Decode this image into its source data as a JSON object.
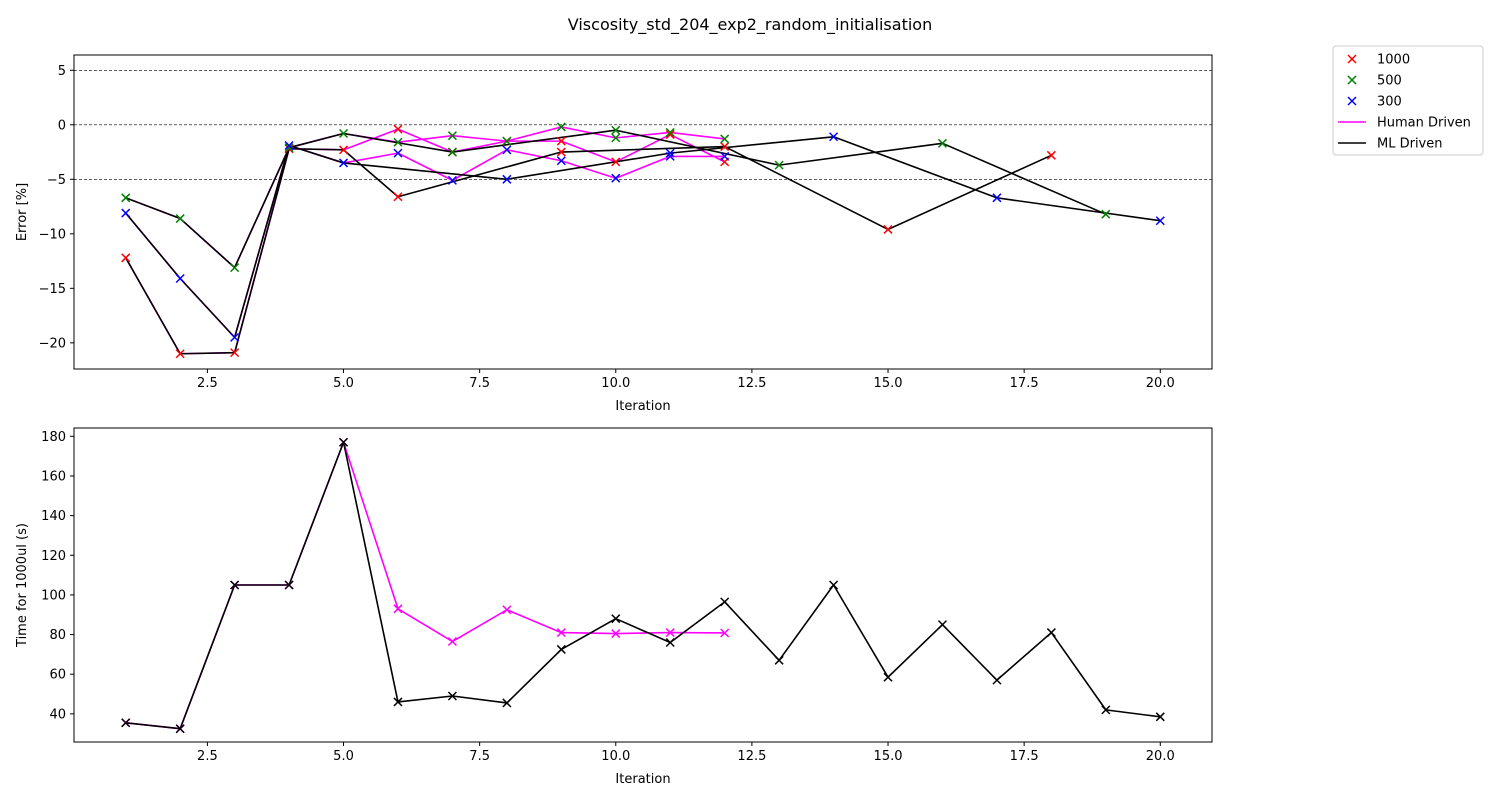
{
  "title": "Viscosity_std_204_exp2_random_initialisation",
  "colors": {
    "v1000": "#ff0000",
    "v500": "#008000",
    "v300": "#0000ff",
    "human": "#ff00ff",
    "ml": "#000000"
  },
  "legend": {
    "placement": "outside-top-right",
    "items": [
      {
        "label": "1000",
        "kind": "marker",
        "color": "#ff0000"
      },
      {
        "label": "500",
        "kind": "marker",
        "color": "#008000"
      },
      {
        "label": "300",
        "kind": "marker",
        "color": "#0000ff"
      },
      {
        "label": "Human Driven",
        "kind": "line",
        "color": "#ff00ff"
      },
      {
        "label": "ML Driven",
        "kind": "line",
        "color": "#000000"
      }
    ]
  },
  "chart_data": [
    {
      "type": "line",
      "xlabel": "Iteration",
      "ylabel": "Error [%]",
      "xlim": [
        0.05,
        20.95
      ],
      "ylim": [
        -22.4,
        6.4
      ],
      "xticks": [
        2.5,
        5.0,
        7.5,
        10.0,
        12.5,
        15.0,
        17.5,
        20.0
      ],
      "xtick_labels": [
        "2.5",
        "5.0",
        "7.5",
        "10.0",
        "12.5",
        "15.0",
        "17.5",
        "20.0"
      ],
      "yticks": [
        5,
        0,
        -5,
        -10,
        -15,
        -20
      ],
      "ytick_labels": [
        "5",
        "0",
        "−5",
        "−10",
        "−15",
        "−20"
      ],
      "hlines": [
        5,
        0,
        -5
      ],
      "series": [
        {
          "name": "Human Driven",
          "group": "1000",
          "color": "#ff00ff",
          "x": [
            1,
            2,
            3,
            4,
            5,
            6,
            7,
            8,
            9,
            10,
            11,
            12
          ],
          "y": [
            -12.2,
            -21.0,
            -20.9,
            -2.2,
            -2.3,
            -0.4,
            -2.5,
            -1.5,
            -1.5,
            -3.4,
            -0.9,
            -3.4
          ]
        },
        {
          "name": "Human Driven",
          "group": "500",
          "color": "#ff00ff",
          "x": [
            1,
            2,
            3,
            4,
            5,
            6,
            7,
            8,
            9,
            10,
            11,
            12
          ],
          "y": [
            -6.7,
            -8.6,
            -13.1,
            -2.1,
            -0.8,
            -1.6,
            -1.0,
            -1.5,
            -0.2,
            -1.2,
            -0.7,
            -1.3
          ]
        },
        {
          "name": "Human Driven",
          "group": "300",
          "color": "#ff00ff",
          "x": [
            1,
            2,
            3,
            4,
            5,
            6,
            7,
            8,
            9,
            10,
            11,
            12
          ],
          "y": [
            -8.1,
            -14.1,
            -19.5,
            -1.9,
            -3.5,
            -2.6,
            -5.1,
            -2.3,
            -3.3,
            -4.9,
            -2.9,
            -2.9
          ]
        },
        {
          "name": "ML Driven",
          "group": "1000",
          "color": "#000000",
          "x": [
            1,
            2,
            3,
            4,
            5,
            6,
            9,
            12,
            15,
            18
          ],
          "y": [
            -12.2,
            -21.0,
            -20.9,
            -2.2,
            -2.3,
            -6.6,
            -2.5,
            -2.0,
            -9.6,
            -2.8
          ]
        },
        {
          "name": "ML Driven",
          "group": "500",
          "color": "#000000",
          "x": [
            1,
            2,
            3,
            4,
            5,
            7,
            10,
            13,
            16,
            19
          ],
          "y": [
            -6.7,
            -8.6,
            -13.1,
            -2.1,
            -0.8,
            -2.5,
            -0.5,
            -3.7,
            -1.7,
            -8.2
          ]
        },
        {
          "name": "ML Driven",
          "group": "300",
          "color": "#000000",
          "x": [
            1,
            2,
            3,
            4,
            5,
            8,
            11,
            14,
            17,
            20
          ],
          "y": [
            -8.1,
            -14.1,
            -19.5,
            -1.9,
            -3.5,
            -5.0,
            -2.6,
            -1.1,
            -6.7,
            -8.8
          ]
        }
      ],
      "markers": [
        {
          "group": "1000",
          "color": "#ff0000",
          "x": [
            1,
            2,
            3,
            4,
            5,
            6,
            7,
            8,
            9,
            10,
            11,
            12,
            6,
            9,
            12,
            15,
            18
          ],
          "y": [
            -12.2,
            -21.0,
            -20.9,
            -2.2,
            -2.3,
            -0.4,
            -2.5,
            -1.5,
            -1.5,
            -3.4,
            -0.9,
            -3.4,
            -6.6,
            -2.5,
            -2.0,
            -9.6,
            -2.8
          ]
        },
        {
          "group": "500",
          "color": "#008000",
          "x": [
            1,
            2,
            3,
            4,
            5,
            6,
            7,
            8,
            9,
            10,
            11,
            12,
            7,
            10,
            13,
            16,
            19
          ],
          "y": [
            -6.7,
            -8.6,
            -13.1,
            -2.1,
            -0.8,
            -1.6,
            -1.0,
            -1.5,
            -0.2,
            -1.2,
            -0.7,
            -1.3,
            -2.5,
            -0.5,
            -3.7,
            -1.7,
            -8.2
          ]
        },
        {
          "group": "300",
          "color": "#0000ff",
          "x": [
            1,
            2,
            3,
            4,
            5,
            6,
            7,
            8,
            9,
            10,
            11,
            12,
            8,
            11,
            14,
            17,
            20
          ],
          "y": [
            -8.1,
            -14.1,
            -19.5,
            -1.9,
            -3.5,
            -2.6,
            -5.1,
            -2.3,
            -3.3,
            -4.9,
            -2.9,
            -2.9,
            -5.0,
            -2.6,
            -1.1,
            -6.7,
            -8.8
          ]
        }
      ]
    },
    {
      "type": "line",
      "xlabel": "Iteration",
      "ylabel": "Time for 1000ul (s)",
      "xlim": [
        0.05,
        20.95
      ],
      "ylim": [
        25.8,
        184.2
      ],
      "xticks": [
        2.5,
        5.0,
        7.5,
        10.0,
        12.5,
        15.0,
        17.5,
        20.0
      ],
      "xtick_labels": [
        "2.5",
        "5.0",
        "7.5",
        "10.0",
        "12.5",
        "15.0",
        "17.5",
        "20.0"
      ],
      "yticks": [
        40,
        60,
        80,
        100,
        120,
        140,
        160,
        180
      ],
      "ytick_labels": [
        "40",
        "60",
        "80",
        "100",
        "120",
        "140",
        "160",
        "180"
      ],
      "hlines": [],
      "series": [
        {
          "name": "Human Driven",
          "color": "#ff00ff",
          "x": [
            1,
            2,
            3,
            4,
            5,
            6,
            7,
            8,
            9,
            10,
            11,
            12
          ],
          "y": [
            35.5,
            32.5,
            105,
            105,
            177,
            93,
            76.5,
            92.5,
            81,
            80.5,
            81,
            80.8
          ]
        },
        {
          "name": "ML Driven",
          "color": "#000000",
          "x": [
            1,
            2,
            3,
            4,
            5,
            6,
            7,
            8,
            9,
            10,
            11,
            12,
            13,
            14,
            15,
            16,
            17,
            18,
            19,
            20
          ],
          "y": [
            35.5,
            32.5,
            105,
            105,
            177,
            46,
            49,
            45.5,
            72.5,
            88,
            76,
            96.5,
            67,
            105,
            58.5,
            85,
            57,
            81,
            42,
            38.5
          ]
        }
      ],
      "markers": [
        {
          "group": "Human Driven",
          "color": "#ff00ff",
          "x": [
            1,
            2,
            3,
            4,
            5,
            6,
            7,
            8,
            9,
            10,
            11,
            12
          ],
          "y": [
            35.5,
            32.5,
            105,
            105,
            177,
            93,
            76.5,
            92.5,
            81,
            80.5,
            81,
            80.8
          ]
        },
        {
          "group": "ML Driven",
          "color": "#000000",
          "x": [
            1,
            2,
            3,
            4,
            5,
            6,
            7,
            8,
            9,
            10,
            11,
            12,
            13,
            14,
            15,
            16,
            17,
            18,
            19,
            20
          ],
          "y": [
            35.5,
            32.5,
            105,
            105,
            177,
            46,
            49,
            45.5,
            72.5,
            88,
            76,
            96.5,
            67,
            105,
            58.5,
            85,
            57,
            81,
            42,
            38.5
          ]
        }
      ]
    }
  ]
}
